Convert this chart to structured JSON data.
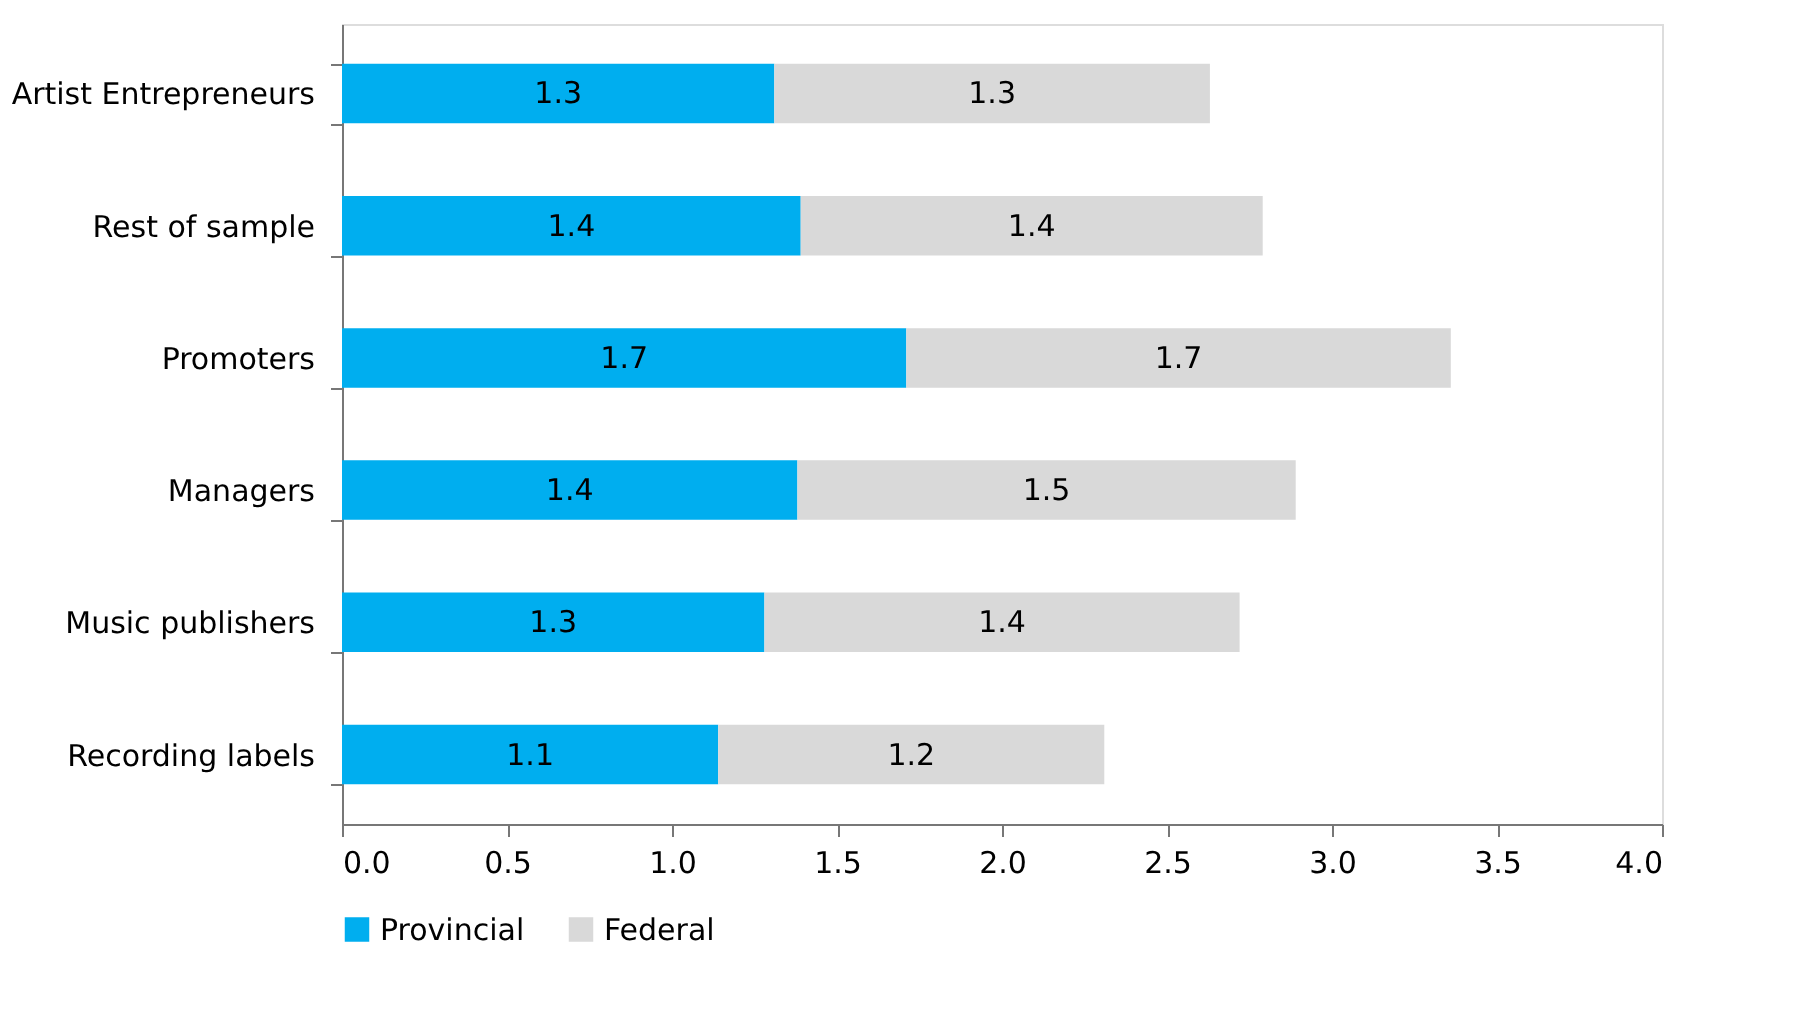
{
  "chart_data": {
    "type": "bar",
    "orientation": "horizontal",
    "stacked": true,
    "categories": [
      "Artist Entrepreneurs",
      "Rest of sample",
      "Promoters",
      "Managers",
      "Music publishers",
      "Recording labels"
    ],
    "series": [
      {
        "name": "Provincial",
        "color": "#00aeef",
        "values": [
          1.31,
          1.39,
          1.71,
          1.38,
          1.28,
          1.14
        ],
        "value_labels": [
          "1.3",
          "1.4",
          "1.7",
          "1.4",
          "1.3",
          "1.1"
        ]
      },
      {
        "name": "Federal",
        "color": "#d9d9d9",
        "values": [
          1.32,
          1.4,
          1.65,
          1.51,
          1.44,
          1.17
        ],
        "value_labels": [
          "1.3",
          "1.4",
          "1.7",
          "1.5",
          "1.4",
          "1.2"
        ]
      }
    ],
    "xlim": [
      0,
      4
    ],
    "xticks": [
      {
        "value": 0,
        "label": "0.0"
      },
      0.5,
      {
        "value": 1,
        "label": "1.0"
      },
      1.5,
      {
        "value": 2,
        "label": "2.0"
      },
      2.5,
      {
        "value": 3,
        "label": "3.0"
      },
      3.5,
      {
        "value": 4,
        "label": "4.0"
      }
    ],
    "grid": false,
    "legend": "bottom"
  }
}
